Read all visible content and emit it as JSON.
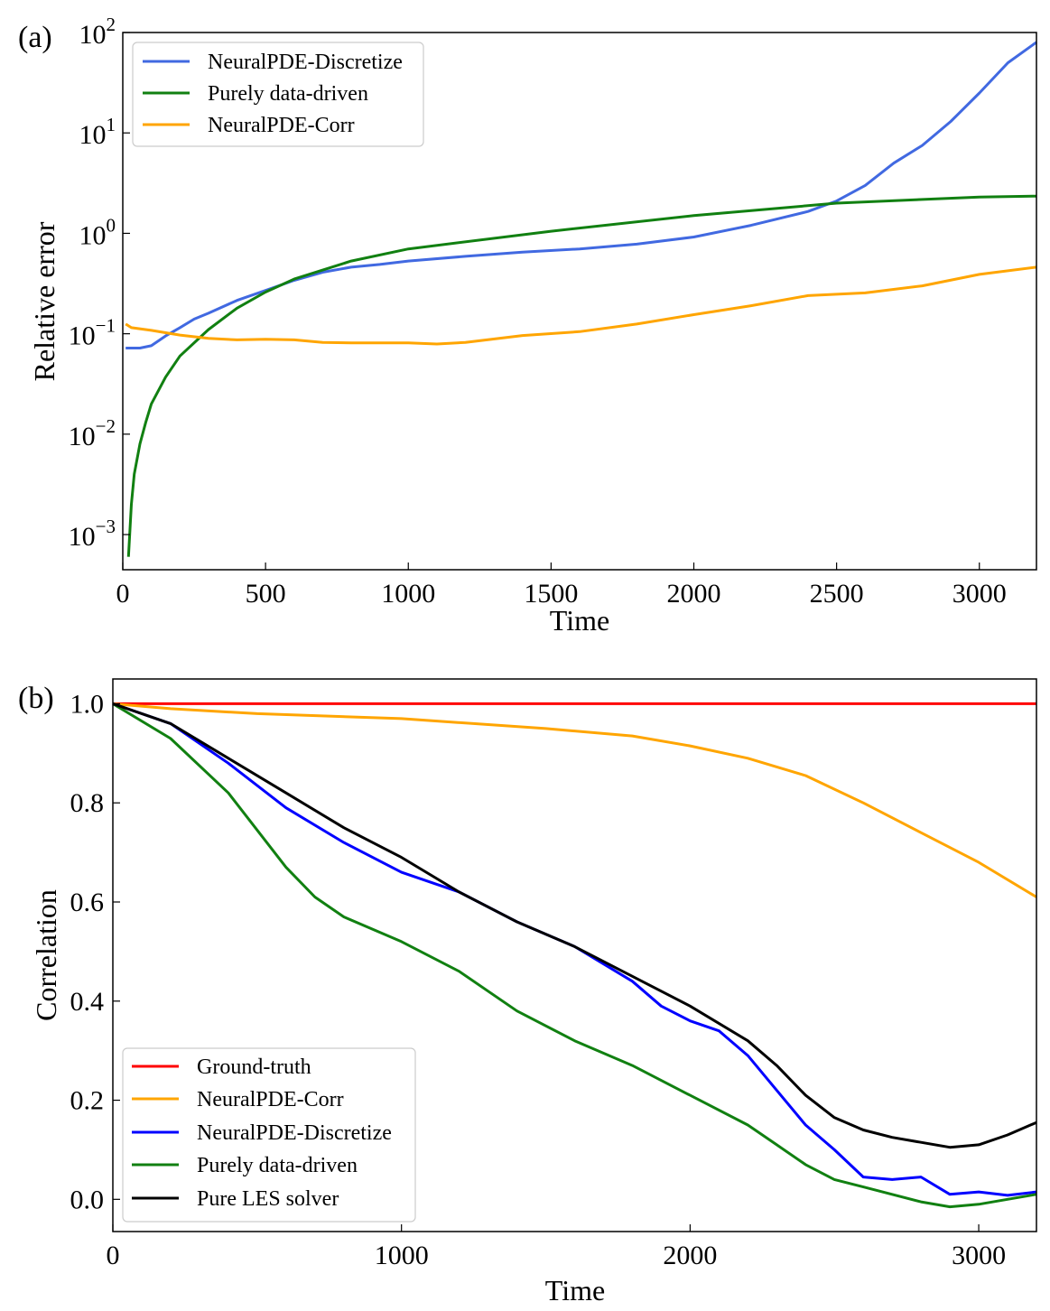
{
  "chart_data": [
    {
      "panel_label": "(a)",
      "type": "line",
      "xlabel": "Time",
      "ylabel": "Relative error",
      "xlim": [
        0,
        3200
      ],
      "ylim_log10": [
        -3.35,
        2.0
      ],
      "yscale": "log",
      "x_ticks": [
        0,
        500,
        1000,
        1500,
        2000,
        2500,
        3000
      ],
      "x_tick_labels": [
        "0",
        "500",
        "1000",
        "1500",
        "2000",
        "2500",
        "3000"
      ],
      "y_ticks": [
        {
          "base": "10",
          "exp": "−3",
          "value": 0.001
        },
        {
          "base": "10",
          "exp": "−2",
          "value": 0.01
        },
        {
          "base": "10",
          "exp": "−1",
          "value": 0.1
        },
        {
          "base": "10",
          "exp": "0",
          "value": 1
        },
        {
          "base": "10",
          "exp": "1",
          "value": 10
        },
        {
          "base": "10",
          "exp": "2",
          "value": 100
        }
      ],
      "legend_position": "top-left",
      "series": [
        {
          "name": "NeuralPDE-Discretize",
          "color": "#4169E1",
          "x": [
            10,
            60,
            100,
            150,
            200,
            250,
            300,
            400,
            500,
            600,
            700,
            800,
            900,
            1000,
            1200,
            1400,
            1600,
            1800,
            2000,
            2200,
            2400,
            2500,
            2600,
            2700,
            2800,
            2900,
            3000,
            3100,
            3200
          ],
          "y": [
            0.072,
            0.072,
            0.076,
            0.095,
            0.115,
            0.14,
            0.16,
            0.215,
            0.27,
            0.34,
            0.41,
            0.46,
            0.49,
            0.53,
            0.59,
            0.65,
            0.7,
            0.78,
            0.92,
            1.2,
            1.65,
            2.1,
            3.0,
            5.0,
            7.5,
            13,
            25,
            50,
            80
          ]
        },
        {
          "name": "Purely data-driven",
          "color": "#118011",
          "x": [
            20,
            30,
            40,
            60,
            80,
            100,
            150,
            200,
            300,
            400,
            500,
            600,
            800,
            1000,
            1500,
            2000,
            2500,
            3000,
            3200
          ],
          "y": [
            0.0006,
            0.002,
            0.004,
            0.008,
            0.013,
            0.02,
            0.037,
            0.06,
            0.11,
            0.18,
            0.26,
            0.35,
            0.53,
            0.7,
            1.05,
            1.5,
            2.0,
            2.3,
            2.35
          ]
        },
        {
          "name": "NeuralPDE-Corr",
          "color": "#FFA500",
          "x": [
            10,
            30,
            100,
            200,
            300,
            400,
            500,
            600,
            700,
            800,
            1000,
            1100,
            1200,
            1400,
            1600,
            1800,
            2000,
            2200,
            2400,
            2600,
            2800,
            3000,
            3200
          ],
          "y": [
            0.125,
            0.115,
            0.108,
            0.097,
            0.09,
            0.087,
            0.088,
            0.087,
            0.082,
            0.081,
            0.081,
            0.079,
            0.082,
            0.096,
            0.105,
            0.125,
            0.155,
            0.19,
            0.24,
            0.255,
            0.3,
            0.39,
            0.46
          ]
        }
      ]
    },
    {
      "panel_label": "(b)",
      "type": "line",
      "xlabel": "Time",
      "ylabel": "Correlation",
      "xlim": [
        0,
        3200
      ],
      "ylim": [
        -0.065,
        1.05
      ],
      "x_ticks": [
        0,
        1000,
        2000,
        3000
      ],
      "x_tick_labels": [
        "0",
        "1000",
        "2000",
        "3000"
      ],
      "y_ticks": [
        0.0,
        0.2,
        0.4,
        0.6,
        0.8,
        1.0
      ],
      "y_tick_labels": [
        "0.0",
        "0.2",
        "0.4",
        "0.6",
        "0.8",
        "1.0"
      ],
      "legend_position": "bottom-left",
      "series": [
        {
          "name": "Ground-truth",
          "color": "#FF0000",
          "x": [
            0,
            3200
          ],
          "y": [
            1.0,
            1.0
          ]
        },
        {
          "name": "NeuralPDE-Corr",
          "color": "#FFA500",
          "x": [
            0,
            200,
            500,
            1000,
            1500,
            1800,
            2000,
            2200,
            2400,
            2600,
            2800,
            3000,
            3200
          ],
          "y": [
            1.0,
            0.99,
            0.98,
            0.97,
            0.95,
            0.935,
            0.915,
            0.89,
            0.855,
            0.8,
            0.74,
            0.68,
            0.61
          ]
        },
        {
          "name": "NeuralPDE-Discretize",
          "color": "#0000FF",
          "x": [
            0,
            200,
            400,
            600,
            800,
            1000,
            1200,
            1400,
            1600,
            1800,
            1900,
            2000,
            2100,
            2200,
            2300,
            2400,
            2500,
            2600,
            2700,
            2800,
            2900,
            3000,
            3100,
            3200
          ],
          "y": [
            1.0,
            0.96,
            0.88,
            0.79,
            0.72,
            0.66,
            0.62,
            0.56,
            0.51,
            0.44,
            0.39,
            0.36,
            0.34,
            0.29,
            0.22,
            0.15,
            0.1,
            0.045,
            0.04,
            0.045,
            0.01,
            0.015,
            0.008,
            0.015
          ]
        },
        {
          "name": "Purely data-driven",
          "color": "#118011",
          "x": [
            0,
            200,
            400,
            600,
            700,
            800,
            1000,
            1200,
            1400,
            1600,
            1800,
            2000,
            2200,
            2300,
            2400,
            2500,
            2600,
            2800,
            2900,
            3000,
            3100,
            3200
          ],
          "y": [
            1.0,
            0.93,
            0.82,
            0.67,
            0.61,
            0.57,
            0.52,
            0.46,
            0.38,
            0.32,
            0.27,
            0.21,
            0.15,
            0.11,
            0.07,
            0.04,
            0.025,
            -0.005,
            -0.015,
            -0.01,
            0.0,
            0.01
          ]
        },
        {
          "name": "Pure LES solver",
          "color": "#000000",
          "x": [
            0,
            200,
            400,
            600,
            800,
            1000,
            1200,
            1400,
            1600,
            1800,
            2000,
            2200,
            2300,
            2400,
            2500,
            2600,
            2700,
            2800,
            2900,
            3000,
            3100,
            3200
          ],
          "y": [
            1.0,
            0.96,
            0.89,
            0.82,
            0.75,
            0.69,
            0.62,
            0.56,
            0.51,
            0.45,
            0.39,
            0.32,
            0.27,
            0.21,
            0.165,
            0.14,
            0.125,
            0.115,
            0.105,
            0.11,
            0.13,
            0.155
          ]
        }
      ]
    }
  ]
}
